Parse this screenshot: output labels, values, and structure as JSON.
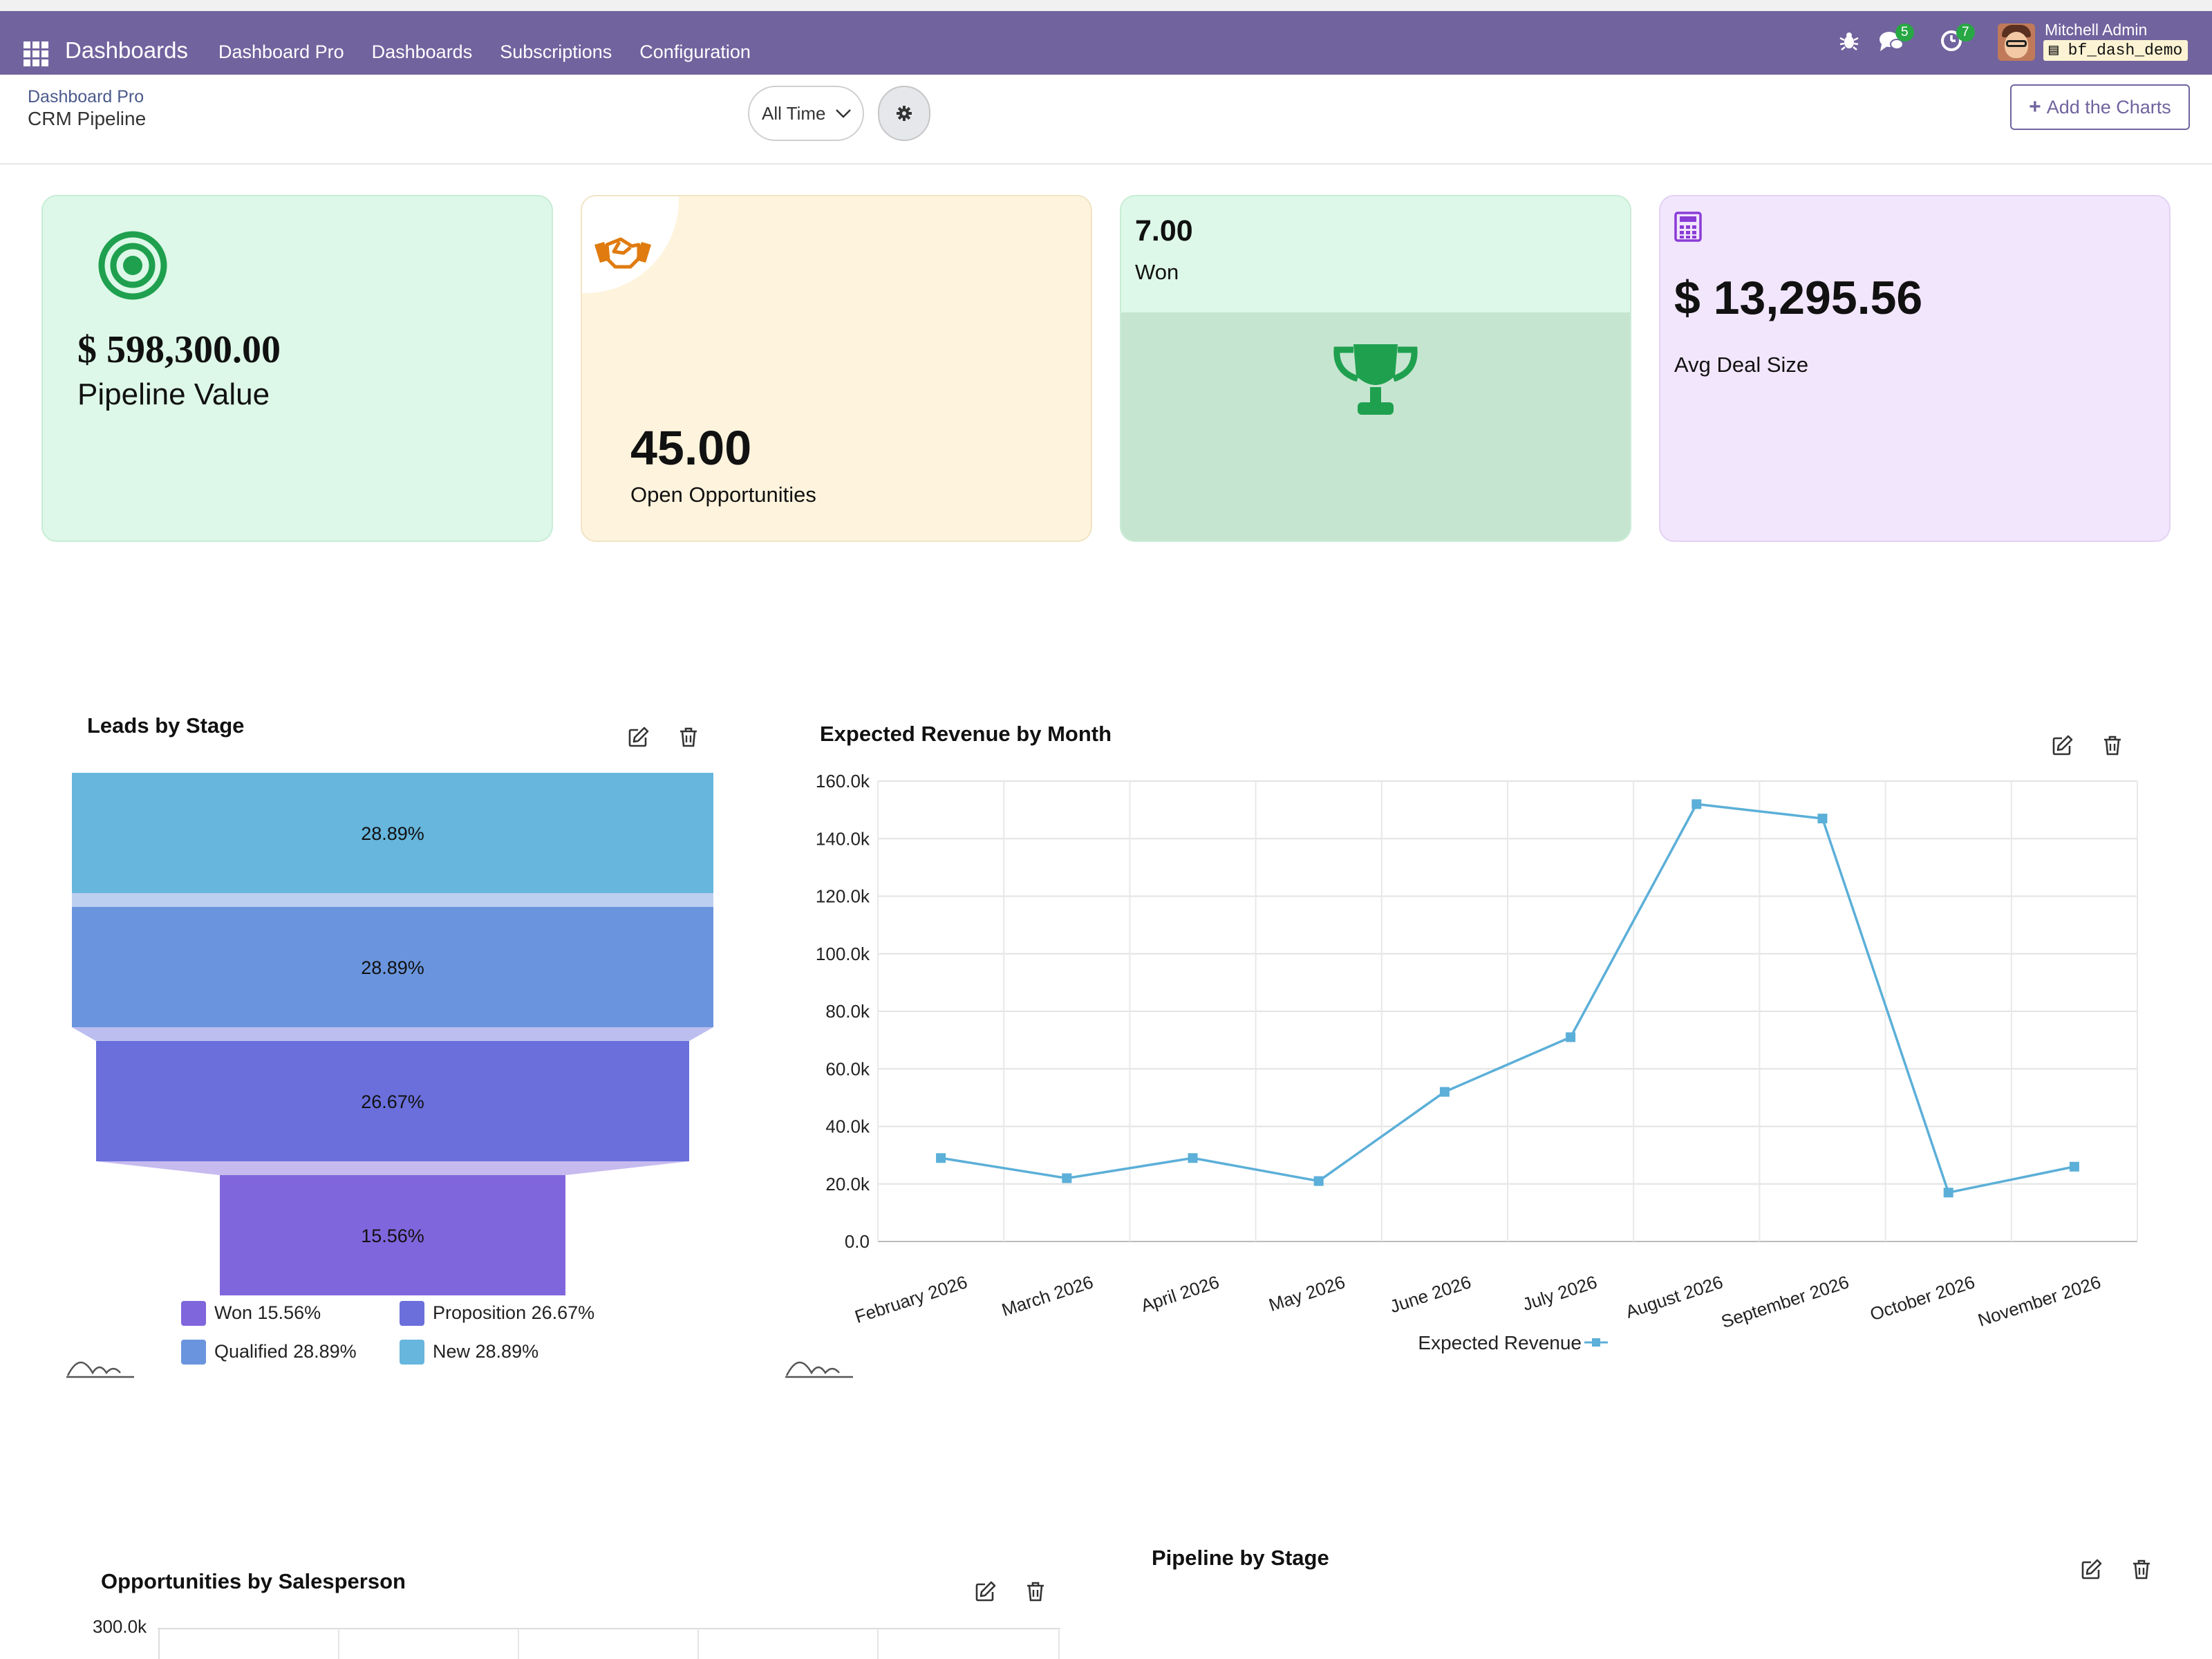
{
  "navbar": {
    "app_name": "Dashboards",
    "menu": [
      "Dashboard Pro",
      "Dashboards",
      "Subscriptions",
      "Configuration"
    ],
    "chat_badge": "5",
    "activity_badge": "7",
    "user_name": "Mitchell Admin",
    "database": "bf_dash_demo",
    "icons": [
      "apps-icon",
      "bug-icon",
      "chat-icon",
      "clock-icon",
      "database-icon"
    ]
  },
  "control_panel": {
    "breadcrumb_parent": "Dashboard Pro",
    "breadcrumb_current": "CRM Pipeline",
    "time_filter": "All Time",
    "add_charts_label": "Add the Charts"
  },
  "kpis": [
    {
      "value": "$ 598,300.00",
      "label": "Pipeline Value",
      "icon": "target-icon",
      "color": "#1fa04f"
    },
    {
      "value": "45.00",
      "label": "Open Opportunities",
      "icon": "handshake-icon",
      "color": "#e07b10"
    },
    {
      "value": "7.00",
      "label": "Won",
      "icon": "trophy-icon",
      "color": "#1fa04f"
    },
    {
      "value": "$ 13,295.56",
      "label": "Avg Deal Size",
      "icon": "calculator-icon",
      "color": "#8a3cd6"
    }
  ],
  "charts": {
    "funnel_title": "Leads by Stage",
    "line_title": "Expected Revenue by Month",
    "bar_title": "Opportunities by Salesperson",
    "pie_title": "Pipeline by Stage",
    "bar_first_tick": "300.0k"
  },
  "chart_data": [
    {
      "type": "funnel",
      "title": "Leads by Stage",
      "categories": [
        "New",
        "Qualified",
        "Proposition",
        "Won"
      ],
      "values": [
        28.89,
        28.89,
        26.67,
        15.56
      ],
      "value_labels": [
        "28.89%",
        "28.89%",
        "26.67%",
        "15.56%"
      ],
      "colors": [
        "#66b6dd",
        "#6a95de",
        "#6a6fdc",
        "#8066dc"
      ],
      "legend": [
        {
          "label": "Won 15.56%",
          "color": "#8066dc"
        },
        {
          "label": "Proposition 26.67%",
          "color": "#6a6fdc"
        },
        {
          "label": "Qualified 28.89%",
          "color": "#6a95de"
        },
        {
          "label": "New 28.89%",
          "color": "#66b6dd"
        }
      ]
    },
    {
      "type": "line",
      "title": "Expected Revenue by Month",
      "x": [
        "February 2026",
        "March 2026",
        "April 2026",
        "May 2026",
        "June 2026",
        "July 2026",
        "August 2026",
        "September 2026",
        "October 2026",
        "November 2026"
      ],
      "series": [
        {
          "name": "Expected Revenue",
          "values": [
            29000,
            22000,
            29000,
            21000,
            52000,
            71000,
            152000,
            147000,
            17000,
            26000
          ],
          "color": "#5bafd8"
        }
      ],
      "y_ticks": [
        "0.0",
        "20.0k",
        "40.0k",
        "60.0k",
        "80.0k",
        "100.0k",
        "120.0k",
        "140.0k",
        "160.0k"
      ],
      "ylim": [
        0,
        160000
      ],
      "grid": true,
      "legend": "bottom"
    }
  ]
}
